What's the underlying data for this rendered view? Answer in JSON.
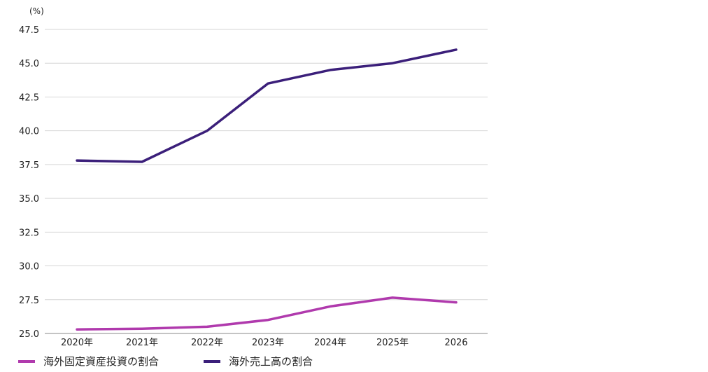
{
  "chart_data": {
    "type": "line",
    "unit_label": "(%)",
    "categories": [
      "2020年",
      "2021年",
      "2022年",
      "2023年",
      "2024年",
      "2025年",
      "2026"
    ],
    "ylim": [
      25.0,
      47.5
    ],
    "yticks": [
      "25.0",
      "27.5",
      "30.0",
      "32.5",
      "35.0",
      "37.5",
      "40.0",
      "42.5",
      "45.0",
      "47.5"
    ],
    "grid": true,
    "legend_position": "bottom-left",
    "series": [
      {
        "name": "海外固定資産投資の割合",
        "color": "#b03aad",
        "values": [
          25.3,
          25.35,
          25.5,
          26.0,
          27.0,
          27.65,
          27.3
        ]
      },
      {
        "name": "海外売上高の割合",
        "color": "#3b1f7a",
        "values": [
          37.8,
          37.7,
          40.0,
          43.5,
          44.5,
          45.0,
          46.0
        ]
      }
    ]
  }
}
